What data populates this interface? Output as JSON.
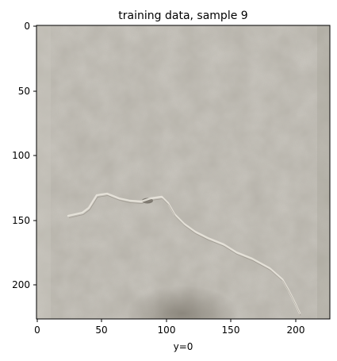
{
  "figure": {
    "title": "training data, sample 9",
    "xlabel": "y=0",
    "x_ticks": [
      "0",
      "50",
      "100",
      "150",
      "200"
    ],
    "y_ticks": [
      "0",
      "50",
      "100",
      "150",
      "200"
    ],
    "image": {
      "subject": "grey concrete surface with a thin crack",
      "extent": [
        0,
        227
      ],
      "colors": {
        "base": "#b8b4ab",
        "dark": "#8d887d",
        "crack": "#e6e2da",
        "frame": "#000000"
      }
    }
  }
}
